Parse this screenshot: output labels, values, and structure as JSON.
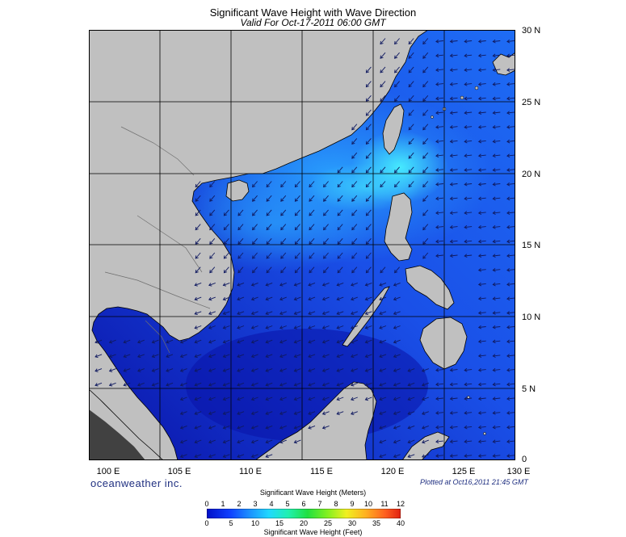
{
  "title": "Significant Wave Height with Wave Direction",
  "subtitle": "Valid For Oct-17-2011 06:00 GMT",
  "brand": "oceanweather inc.",
  "plotted": "Plotted at Oct16,2011 21:45 GMT",
  "lat_labels": [
    "30 N",
    "25 N",
    "20 N",
    "15 N",
    "10 N",
    "5 N",
    "0"
  ],
  "lon_labels": [
    "100 E",
    "105 E",
    "110 E",
    "115 E",
    "120 E",
    "125 E",
    "130 E"
  ],
  "legend": {
    "meters_title": "Significant Wave Height (Meters)",
    "feet_title": "Significant Wave Height (Feet)",
    "meters_ticks": [
      "0",
      "1",
      "2",
      "3",
      "4",
      "5",
      "6",
      "7",
      "8",
      "9",
      "10",
      "11",
      "12"
    ],
    "feet_ticks": [
      "0",
      "5",
      "10",
      "15",
      "20",
      "25",
      "30",
      "35",
      "40"
    ]
  },
  "colors": {
    "land": "#c0c0c0",
    "water_low": "#0a1aa0",
    "water_mid": "#1e5ff0",
    "water_high": "#36c8ff",
    "arrow": "#101a60"
  }
}
